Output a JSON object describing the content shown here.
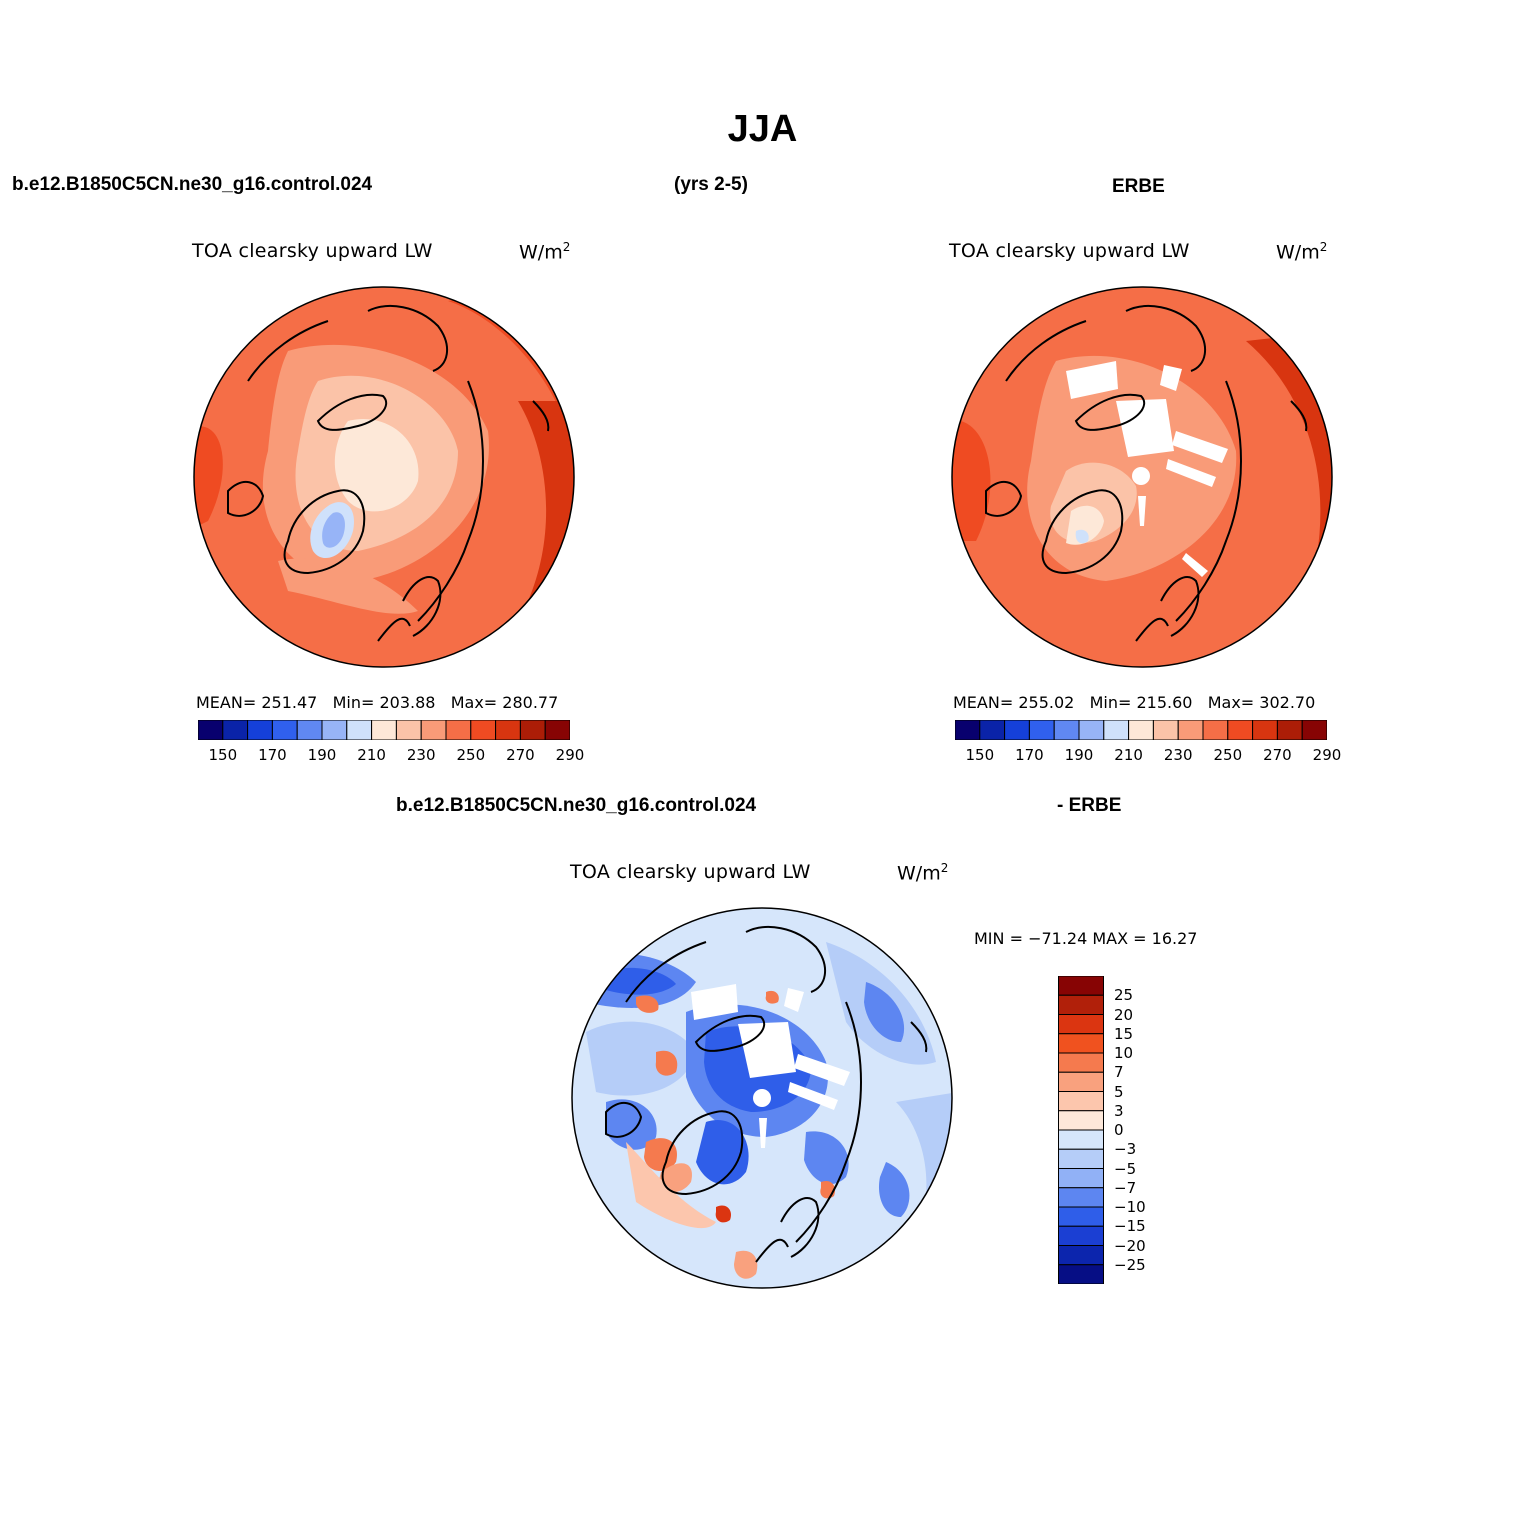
{
  "title": "JJA",
  "header": {
    "left": "b.e12.B1850C5CN.ne30_g16.control.024",
    "center": "(yrs 2-5)",
    "right": "ERBE"
  },
  "diff_header": {
    "left": "b.e12.B1850C5CN.ne30_g16.control.024",
    "right": "- ERBE"
  },
  "panels": [
    {
      "id": "model",
      "title": "TOA clearsky upward LW",
      "units": "W/m",
      "units_sup": "2",
      "mean_label": "MEAN=",
      "mean": "251.47",
      "min_label": "Min=",
      "min": "203.88",
      "max_label": "Max=",
      "max": "280.77"
    },
    {
      "id": "obs",
      "title": "TOA clearsky upward LW",
      "units": "W/m",
      "units_sup": "2",
      "mean_label": "MEAN=",
      "mean": "255.02",
      "min_label": "Min=",
      "min": "215.60",
      "max_label": "Max=",
      "max": "302.70"
    },
    {
      "id": "diff",
      "title": "TOA clearsky upward LW",
      "units": "W/m",
      "units_sup": "2",
      "minmax_text": "MIN = −71.24 MAX =   16.27"
    }
  ],
  "abs_colorbar": {
    "tick_labels": [
      "150",
      "170",
      "190",
      "210",
      "230",
      "250",
      "270",
      "290"
    ],
    "colors": [
      "#08006e",
      "#0a23a8",
      "#1540d9",
      "#3060ee",
      "#6088f3",
      "#97b4f7",
      "#cfe1fb",
      "#fde8d8",
      "#fbc3a8",
      "#f99b78",
      "#f56e47",
      "#ef4b22",
      "#d83510",
      "#ac1d07",
      "#870404"
    ]
  },
  "diff_colorbar": {
    "labels": [
      "25",
      "20",
      "15",
      "10",
      "7",
      "5",
      "3",
      "0",
      "−3",
      "−5",
      "−7",
      "−10",
      "−15",
      "−20",
      "−25"
    ],
    "colors": [
      "#870404",
      "#b1200a",
      "#db3511",
      "#f0521f",
      "#f57a4e",
      "#f9a17e",
      "#fcc6ad",
      "#fde8da",
      "#d6e6fb",
      "#b5cdf8",
      "#91b1f6",
      "#5d86f1",
      "#2f5ee9",
      "#1b3fd3",
      "#0c25ad",
      "#060e85"
    ]
  }
}
